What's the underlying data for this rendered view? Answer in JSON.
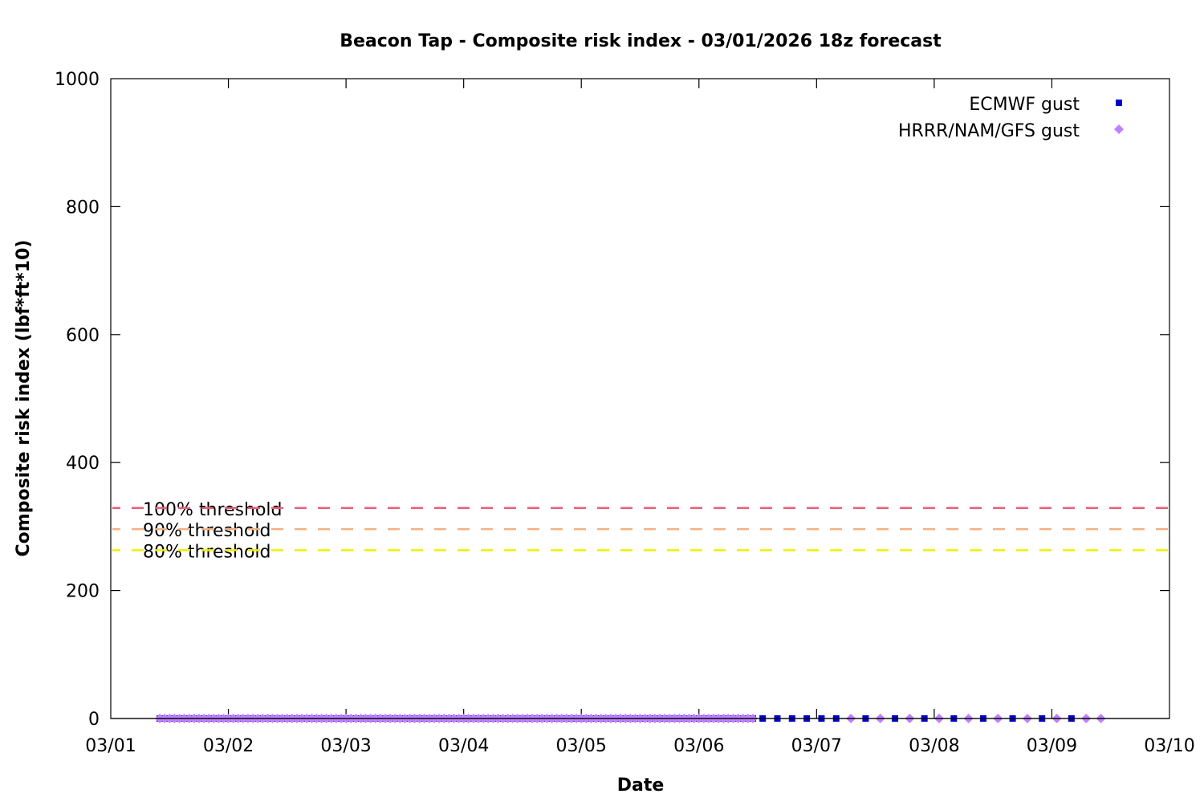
{
  "chart_data": {
    "type": "scatter",
    "title": "Beacon Tap - Composite risk index - 03/01/2026 18z forecast",
    "xlabel": "Date",
    "ylabel": "Composite risk index (lbf*ft*10)",
    "xlim": [
      "2026-03-01T00:00",
      "2026-03-10T00:00"
    ],
    "ylim": [
      0,
      1000
    ],
    "x_ticks": [
      "03/01",
      "03/02",
      "03/03",
      "03/04",
      "03/05",
      "03/06",
      "03/07",
      "03/08",
      "03/09",
      "03/10"
    ],
    "y_ticks": [
      0,
      200,
      400,
      600,
      800,
      1000
    ],
    "grid": false,
    "legend_placement": "top-right",
    "series": [
      {
        "name": "ECMWF gust",
        "marker": "square",
        "color": "#0000cc",
        "segments": [
          {
            "start": "2026-03-01T10:00",
            "end": "2026-03-06T11:00",
            "step_hours": 1,
            "value": 0
          },
          {
            "start": "2026-03-06T13:00",
            "end": "2026-03-07T04:00",
            "step_hours": 3,
            "value": 0
          },
          {
            "start": "2026-03-07T10:00",
            "end": "2026-03-09T04:00",
            "step_hours": 6,
            "value": 0
          }
        ]
      },
      {
        "name": "HRRR/NAM/GFS gust",
        "marker": "diamond",
        "color": "#c080ff",
        "segments": [
          {
            "start": "2026-03-01T10:00",
            "end": "2026-03-06T11:00",
            "step_hours": 1,
            "value": 0
          },
          {
            "start": "2026-03-07T07:00",
            "end": "2026-03-09T07:00",
            "step_hours": 6,
            "value": 0
          },
          {
            "start": "2026-03-09T10:00",
            "end": "2026-03-09T10:00",
            "step_hours": 3,
            "value": 0
          }
        ]
      }
    ],
    "thresholds": [
      {
        "label": "100% threshold",
        "value": 329,
        "color": "#e8607a"
      },
      {
        "label": "90% threshold",
        "value": 296,
        "color": "#f4b183"
      },
      {
        "label": "80% threshold",
        "value": 263,
        "color": "#f0f000"
      }
    ]
  }
}
